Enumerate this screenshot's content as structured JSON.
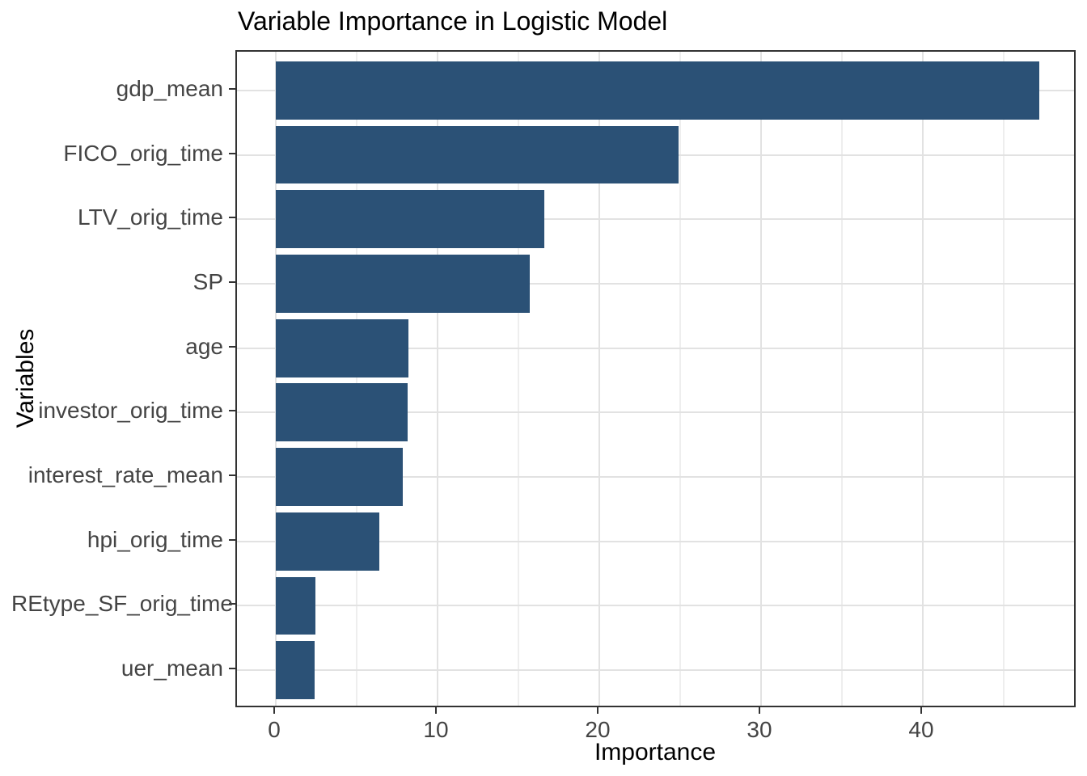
{
  "chart_data": {
    "type": "bar",
    "orientation": "horizontal",
    "title": "Variable Importance in Logistic Model",
    "xlabel": "Importance",
    "ylabel": "Variables",
    "categories": [
      "gdp_mean",
      "FICO_orig_time",
      "LTV_orig_time",
      "SP",
      "age",
      "investor_orig_time",
      "interest_rate_mean",
      "hpi_orig_time",
      "REtype_SF_orig_time",
      "uer_mean"
    ],
    "values": [
      47.2,
      24.9,
      16.6,
      15.7,
      8.2,
      8.15,
      7.85,
      6.4,
      2.45,
      2.4
    ],
    "x_major_ticks": [
      0,
      10,
      20,
      30,
      40
    ],
    "x_major_tick_labels": [
      "0",
      "10",
      "20",
      "30",
      "40"
    ],
    "x_minor_ticks": [
      5,
      15,
      25,
      35,
      45
    ],
    "xlim": [
      -2.4,
      49.55
    ],
    "grid": "on",
    "legend_position": "none",
    "colors": {
      "bar_fill": "#2b5176",
      "panel_border": "#333333",
      "grid_major": "#e2e2e2",
      "grid_minor": "#eeeeee",
      "tick": "#333333",
      "tick_label": "#444444",
      "title_text": "#000000",
      "background": "#ffffff"
    }
  }
}
